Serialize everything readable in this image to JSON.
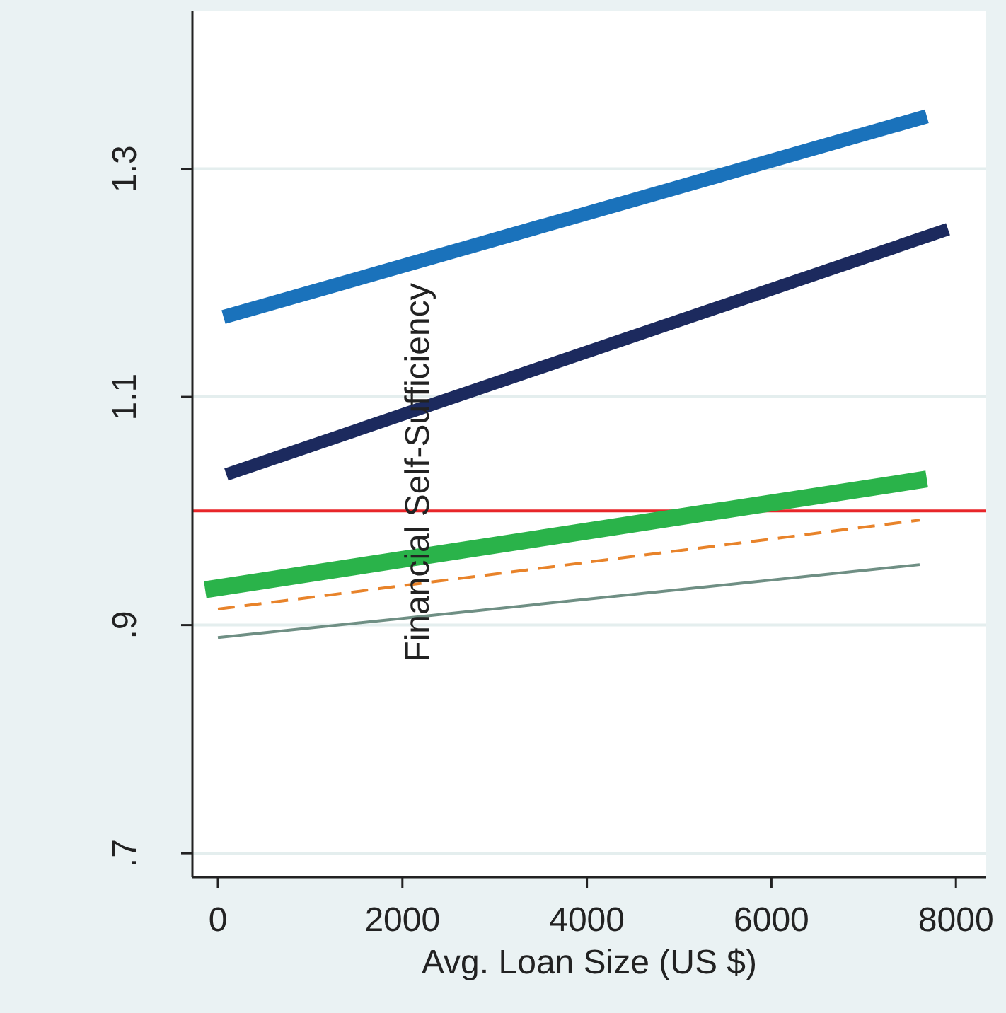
{
  "chart_data": {
    "type": "line",
    "xlabel": "Avg. Loan Size (US $)",
    "ylabel": "Financial Self-Sufficiency",
    "xlim": [
      -276,
      8328
    ],
    "ylim": [
      0.679,
      1.438
    ],
    "xticks": [
      0,
      2000,
      4000,
      6000,
      8000
    ],
    "yticks": [
      {
        "value": 0.7,
        "label": ".7"
      },
      {
        "value": 0.9,
        "label": ".9"
      },
      1.1,
      1.3
    ],
    "grid": "y",
    "marker": "none",
    "series": [
      {
        "color": "#1a72bb",
        "x": [
          61,
          7684
        ],
        "values": [
          1.17,
          1.346
        ]
      },
      {
        "color": "#1c2a5e",
        "x": [
          92,
          7914
        ],
        "values": [
          1.032,
          1.247
        ]
      },
      {
        "color": "#2ab34a",
        "x": [
          -138,
          7684
        ],
        "values": [
          0.931,
          1.028
        ]
      },
      {
        "color": "#e8832a",
        "x": [
          0,
          7607
        ],
        "values": [
          0.914,
          0.992
        ],
        "line_style": "dashed"
      },
      {
        "color": "#6f8f84",
        "x": [
          0,
          7607
        ],
        "values": [
          0.889,
          0.953
        ]
      }
    ],
    "ref_lines": [
      {
        "axis": "y",
        "value": 1,
        "color": "#e8262a"
      }
    ]
  }
}
